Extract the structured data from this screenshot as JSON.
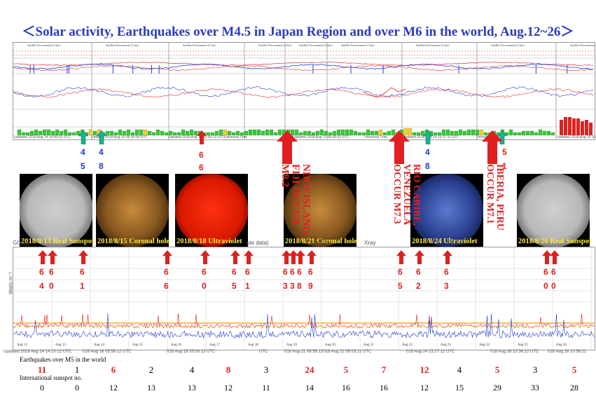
{
  "title": "＜Solar activity, Earthquakes over M4.5 in Japan Region and over M6 in the world, Aug.12~26＞",
  "colors": {
    "title": "#2b3bbf",
    "accent_red": "#e02020",
    "arrow_green": "#16b58a",
    "caption_yellow": "#ffeb3b"
  },
  "top_panel_header": "Satellite Environment (3 day)",
  "top_footers": [
    "Updated 2018 Aug 14 14:00:03 UTC",
    "Updated 2018 Aug 16 06:00:04 UTC",
    "Updated 2018 Aug 18 00:00:13 UTC",
    "Universal Time",
    "Updated 2018 Aug 21 06:00:03 UTC",
    "Universal Time",
    "Updated 2018 Aug 24 23:27:12 UTC",
    "Universal Time",
    "Updated 2018 Aug 26 10:00:03 UTC"
  ],
  "sun_images": [
    {
      "caption": "2018/8/13 Real Sunspot",
      "kind": "sunspot"
    },
    {
      "caption": "2018/8/15 Coronal hole",
      "kind": "coronal"
    },
    {
      "caption": "2018/8/18 Ultraviolet",
      "kind": "uv"
    },
    {
      "caption": "2018/8/21 Coronal hole",
      "kind": "coronal"
    },
    {
      "caption": "2018/8/24 Ultraviolet",
      "kind": "uv_blue"
    },
    {
      "caption": "2018/8/26 Real Sunspot",
      "kind": "sunspot"
    }
  ],
  "big_events": [
    {
      "text": "NDOI ISLAND, FIJI OCCUR M8.2"
    },
    {
      "text": "RIO CARIBE, VENEZUELA OCCUR M7.3"
    },
    {
      "text": "IBERIA, PERU OCCUR M7.1"
    }
  ],
  "green_arrow_labels": [
    [
      "4",
      "5"
    ],
    [
      "4",
      "8"
    ],
    [
      "4",
      "8"
    ]
  ],
  "top_red_labels": [
    [
      "6",
      "6"
    ],
    [
      "5",
      "1"
    ]
  ],
  "xray_title_fragments": [
    "GOES",
    "ute data)",
    "-ray Flu",
    "Xray",
    "Flux (1"
  ],
  "xray_ylabel": "Watts m⁻²",
  "quake_labels": [
    [
      "6",
      "4"
    ],
    [
      "6",
      "0"
    ],
    [
      "6",
      "1"
    ],
    [
      "6",
      "6"
    ],
    [
      "6",
      "0"
    ],
    [
      "6",
      "5"
    ],
    [
      "6",
      "1"
    ],
    [
      "6",
      "3"
    ],
    [
      "6",
      "3"
    ],
    [
      "6",
      "8"
    ],
    [
      "6",
      "9"
    ],
    [
      "6",
      "5"
    ],
    [
      "6",
      "2"
    ],
    [
      "6",
      "3"
    ],
    [
      "6",
      "0"
    ],
    [
      "6",
      "0"
    ]
  ],
  "xray_footers": [
    "Updated 2018 Aug 14 14:10:12 UTC",
    "018 Aug 16 05:56:12 UTC",
    "018 Aug 18 05:00:13 UTC",
    "UTC",
    "018 Aug 21 06:59:12018 Aug 22 06:03:11 UTC",
    "018 Aug 24 23:27:12 UTC",
    "018 Aug 26 10:36:12 UTC",
    "018 Aug 28 10:58:11"
  ],
  "xray_dates": [
    "Aug 12",
    "Aug 13",
    "Aug 14",
    "Aug 15",
    "Aug 16",
    "Aug 17",
    "Aug 18",
    "Aug 19",
    "Aug 20",
    "Aug 21",
    "Aug 22",
    "Aug 23",
    "Aug 24",
    "Aug 25",
    "Aug 26"
  ],
  "universal_time": "Universal Time",
  "earthquakes_label": "Earthquakes over M5 in the world",
  "earthquake_counts": [
    {
      "v": "11",
      "red": true
    },
    {
      "v": "1",
      "red": false
    },
    {
      "v": "6",
      "red": true
    },
    {
      "v": "2",
      "red": false
    },
    {
      "v": "4",
      "red": false
    },
    {
      "v": "8",
      "red": true
    },
    {
      "v": "3",
      "red": false
    },
    {
      "v": "24",
      "red": true
    },
    {
      "v": "5",
      "red": true
    },
    {
      "v": "7",
      "red": true
    },
    {
      "v": "12",
      "red": true
    },
    {
      "v": "4",
      "red": false
    },
    {
      "v": "5",
      "red": true
    },
    {
      "v": "3",
      "red": false
    },
    {
      "v": "5",
      "red": true
    }
  ],
  "sunspot_label": "International sunspot no.",
  "sunspot_numbers": [
    "0",
    "0",
    "12",
    "13",
    "13",
    "12",
    "11",
    "14",
    "16",
    "16",
    "12",
    "15",
    "29",
    "33",
    "28"
  ]
}
